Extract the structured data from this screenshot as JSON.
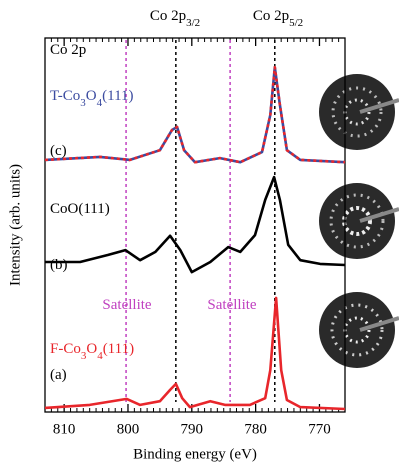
{
  "chart_data": {
    "type": "line",
    "xlabel": "Binding energy (eV)",
    "ylabel": "Intensity (arb. units)",
    "xlim": [
      813,
      766
    ],
    "ylim": [
      0,
      100
    ],
    "xticks": [
      810,
      800,
      790,
      780,
      770
    ],
    "xminorticks": [
      813,
      812,
      811,
      809,
      808,
      807,
      806,
      805,
      804,
      803,
      802,
      801,
      799,
      798,
      797,
      796,
      795,
      794,
      793,
      792,
      791,
      789,
      788,
      787,
      786,
      785,
      784,
      783,
      782,
      781,
      779,
      778,
      777,
      776,
      775,
      774,
      773,
      772,
      771,
      769,
      768,
      767,
      766
    ],
    "series": [
      {
        "color": "#e8262b",
        "x": [
          813,
          806,
          800.2,
          798.1,
          795,
          793.4,
          792.5,
          791.5,
          790.3,
          787.1,
          784.8,
          780.9,
          778.5,
          777.7,
          776.8,
          776,
          775.1,
          773,
          766
        ],
        "values": [
          1.1,
          1.9,
          3.5,
          1.9,
          2.9,
          5.9,
          7.5,
          3.7,
          1.3,
          2.9,
          1.9,
          1.9,
          3.7,
          11.2,
          30.5,
          11.2,
          3.2,
          1.3,
          0.8
        ]
      },
      {
        "color": "#000000",
        "x": [
          813,
          807.5,
          803.1,
          800.4,
          798.1,
          795.7,
          793.4,
          791.8,
          790,
          787.1,
          784.3,
          782.4,
          780.1,
          778.5,
          777.1,
          776.2,
          774.9,
          773,
          769.9,
          766
        ],
        "values": [
          40.1,
          40.1,
          42,
          43.3,
          40.6,
          42.8,
          47.1,
          43.3,
          37.4,
          40.1,
          44.1,
          42.8,
          47.3,
          56.7,
          62.8,
          56.7,
          44.7,
          40.6,
          39.6,
          39.3
        ]
      },
      {
        "color": "#3b4ba0",
        "dash_color": "#e8262b",
        "x": [
          813,
          804.4,
          799.7,
          795,
          793.1,
          792.3,
          791.2,
          789.5,
          785.6,
          782.4,
          779,
          777.7,
          777,
          776.2,
          775.1,
          773,
          766
        ],
        "values": [
          67.4,
          68.2,
          67.4,
          70,
          75.4,
          76.2,
          70,
          66.8,
          67.9,
          66.8,
          69.5,
          79.4,
          92.2,
          82.1,
          70,
          67.4,
          66.8
        ]
      }
    ],
    "reference_lines": [
      {
        "x": 792.5,
        "color": "#000000"
      },
      {
        "x": 777,
        "color": "#000000"
      },
      {
        "x": 800.3,
        "color": "#c040c0"
      },
      {
        "x": 784,
        "color": "#c040c0"
      }
    ],
    "top_labels": [
      {
        "parts": [
          {
            "text": "Co 2p"
          },
          {
            "text": "3/2",
            "sub": true
          }
        ]
      },
      {
        "parts": [
          {
            "text": "Co 2p"
          },
          {
            "text": "5/2",
            "sub": true
          }
        ]
      }
    ],
    "annotations": [
      {
        "parts": [
          {
            "text": "Co 2p"
          }
        ],
        "color": "#000000"
      },
      {
        "parts": [
          {
            "text": "T-Co"
          },
          {
            "text": "3",
            "sub": true
          },
          {
            "text": "O"
          },
          {
            "text": "4",
            "sub": true
          },
          {
            "text": "(111)"
          }
        ],
        "color": "#3b4ba0"
      },
      {
        "parts": [
          {
            "text": "(c)"
          }
        ],
        "color": "#000000"
      },
      {
        "parts": [
          {
            "text": "CoO(111)"
          }
        ],
        "color": "#000000"
      },
      {
        "parts": [
          {
            "text": "(b)"
          }
        ],
        "color": "#000000"
      },
      {
        "parts": [
          {
            "text": "Satellite"
          }
        ],
        "color": "#c040c0"
      },
      {
        "parts": [
          {
            "text": "Satellite"
          }
        ],
        "color": "#c040c0"
      },
      {
        "parts": [
          {
            "text": "F-Co"
          },
          {
            "text": "3",
            "sub": true
          },
          {
            "text": "O"
          },
          {
            "text": "4",
            "sub": true
          },
          {
            "text": "(111)"
          }
        ],
        "color": "#e8262b"
      },
      {
        "parts": [
          {
            "text": "(a)"
          }
        ],
        "color": "#000000"
      }
    ]
  }
}
